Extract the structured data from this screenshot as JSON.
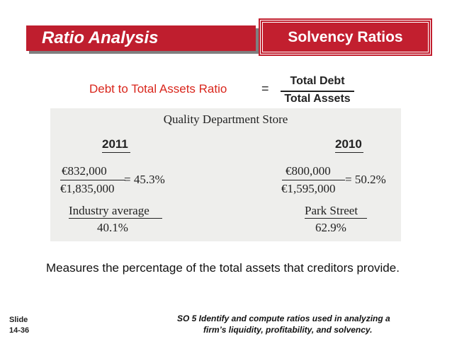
{
  "header": {
    "title": "Ratio Analysis",
    "subtitle": "Solvency Ratios"
  },
  "formula": {
    "label": "Debt to Total Assets Ratio",
    "equals": "=",
    "numerator": "Total Debt",
    "denominator": "Total Assets"
  },
  "example": {
    "company": "Quality Department Store",
    "year_2011": {
      "label": "2011",
      "numerator": "€832,000",
      "denominator": "€1,835,000",
      "result": "= 45.3%"
    },
    "year_2010": {
      "label": "2010",
      "numerator": "€800,000",
      "denominator": "€1,595,000",
      "result": "= 50.2%"
    },
    "industry": {
      "label": "Industry average",
      "value": "40.1%"
    },
    "park": {
      "label": "Park Street",
      "value": "62.9%"
    }
  },
  "description": "Measures the percentage of the total assets that creditors provide.",
  "footer": {
    "slide_label": "Slide",
    "slide_number": "14-36",
    "so_line1": "SO 5  Identify and compute ratios used in analyzing a",
    "so_line2": "firm’s liquidity, profitability, and solvency."
  },
  "colors": {
    "accent": "#c21f2f",
    "formula_label": "#d9261c",
    "panel": "#eeeeec"
  }
}
